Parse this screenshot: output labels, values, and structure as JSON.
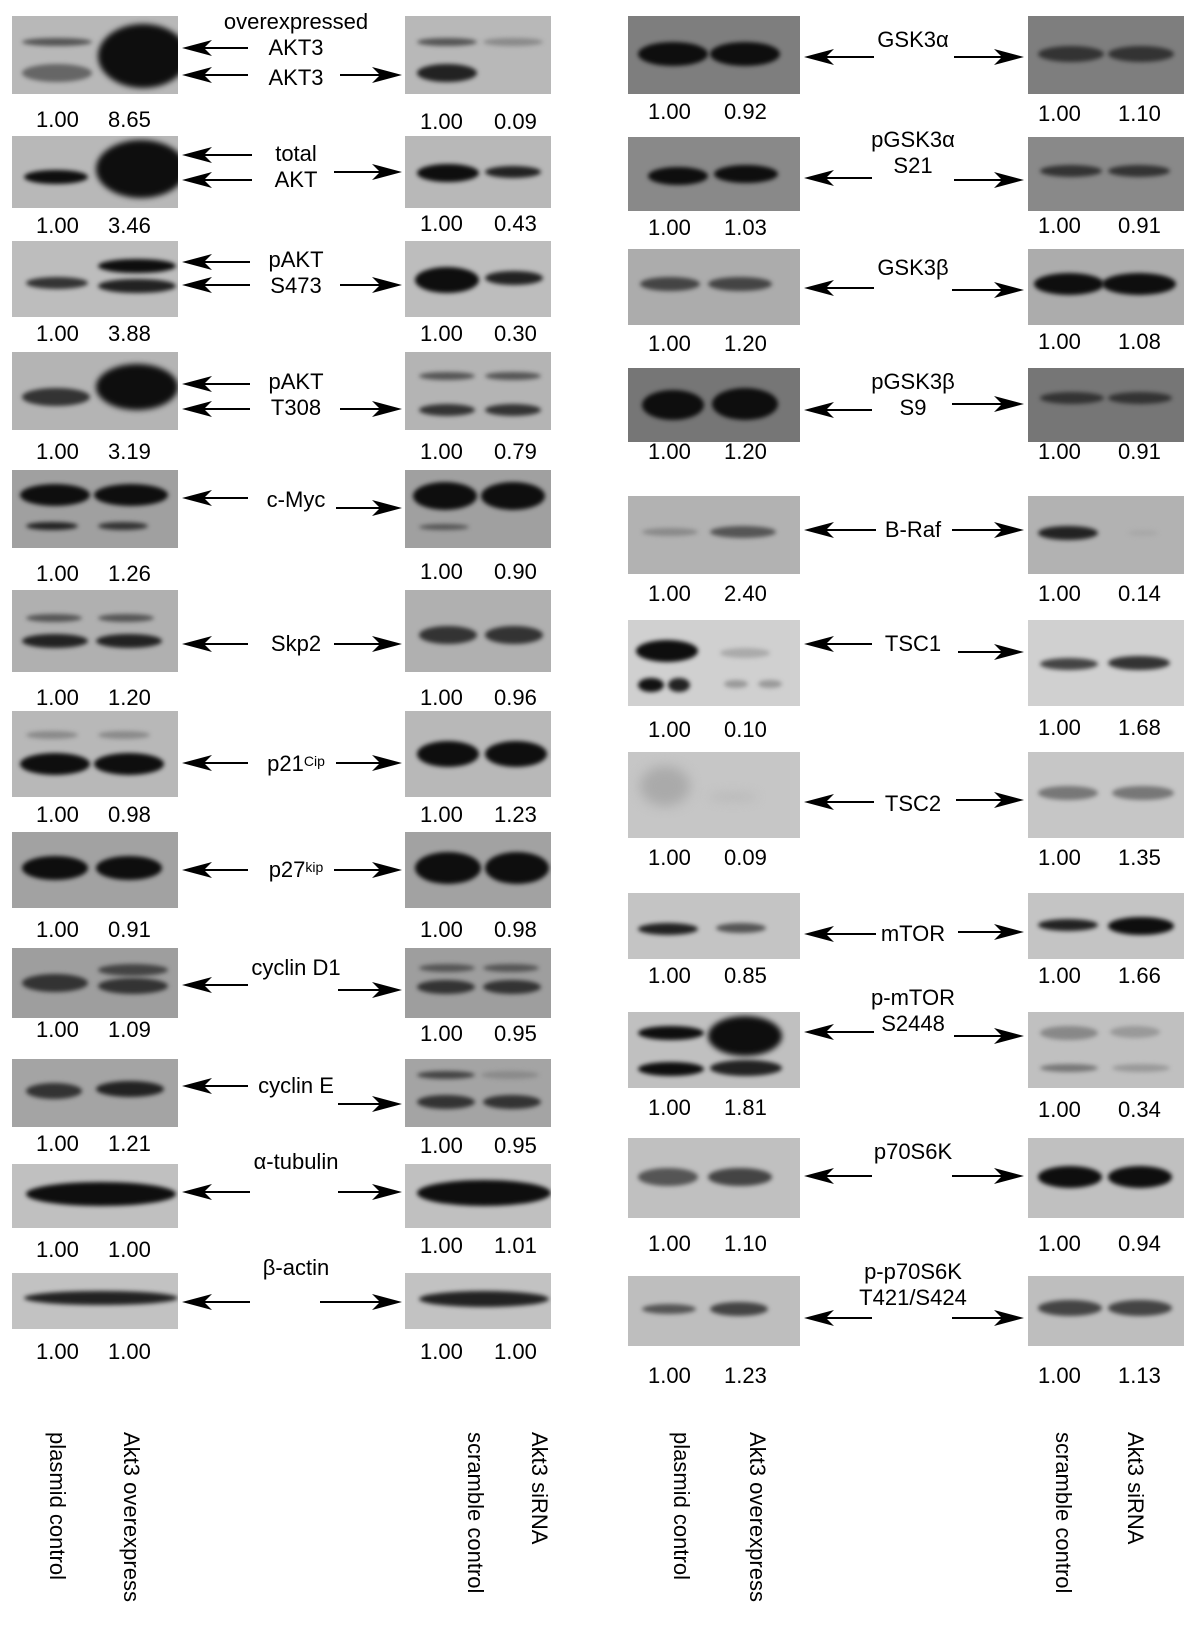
{
  "lane_labels": {
    "left": [
      "plasmid control",
      "Akt3 overexpress",
      "scramble control",
      "Akt3 siRNA"
    ],
    "right": [
      "plasmid control",
      "Akt3 overexpress",
      "scramble control",
      "Akt3 siRNA"
    ]
  },
  "left_panels": [
    {
      "label": "overexpressed\nAKT3",
      "label2": "AKT3",
      "oe_values": [
        "1.00",
        "8.65"
      ],
      "si_values": [
        "1.00",
        "0.09"
      ]
    },
    {
      "label": "total\nAKT",
      "oe_values": [
        "1.00",
        "3.46"
      ],
      "si_values": [
        "1.00",
        "0.43"
      ]
    },
    {
      "label": "pAKT\nS473",
      "oe_values": [
        "1.00",
        "3.88"
      ],
      "si_values": [
        "1.00",
        "0.30"
      ]
    },
    {
      "label": "pAKT\nT308",
      "oe_values": [
        "1.00",
        "3.19"
      ],
      "si_values": [
        "1.00",
        "0.79"
      ]
    },
    {
      "label": "c-Myc",
      "oe_values": [
        "1.00",
        "1.26"
      ],
      "si_values": [
        "1.00",
        "0.90"
      ]
    },
    {
      "label": "Skp2",
      "oe_values": [
        "1.00",
        "1.20"
      ],
      "si_values": [
        "1.00",
        "0.96"
      ]
    },
    {
      "label": "p21",
      "label_sup": "Cip",
      "oe_values": [
        "1.00",
        "0.98"
      ],
      "si_values": [
        "1.00",
        "1.23"
      ]
    },
    {
      "label": "p27",
      "label_sup": "kip",
      "oe_values": [
        "1.00",
        "0.91"
      ],
      "si_values": [
        "1.00",
        "0.98"
      ]
    },
    {
      "label": "cyclin D1",
      "oe_values": [
        "1.00",
        "1.09"
      ],
      "si_values": [
        "1.00",
        "0.95"
      ]
    },
    {
      "label": "cyclin E",
      "oe_values": [
        "1.00",
        "1.21"
      ],
      "si_values": [
        "1.00",
        "0.95"
      ]
    },
    {
      "label": "α-tubulin",
      "oe_values": [
        "1.00",
        "1.00"
      ],
      "si_values": [
        "1.00",
        "1.01"
      ]
    },
    {
      "label": "β-actin",
      "oe_values": [
        "1.00",
        "1.00"
      ],
      "si_values": [
        "1.00",
        "1.00"
      ]
    }
  ],
  "right_panels": [
    {
      "label": "GSK3α",
      "oe_values": [
        "1.00",
        "0.92"
      ],
      "si_values": [
        "1.00",
        "1.10"
      ]
    },
    {
      "label": "pGSK3α\nS21",
      "oe_values": [
        "1.00",
        "1.03"
      ],
      "si_values": [
        "1.00",
        "0.91"
      ]
    },
    {
      "label": "GSK3β",
      "oe_values": [
        "1.00",
        "1.20"
      ],
      "si_values": [
        "1.00",
        "1.08"
      ]
    },
    {
      "label": "pGSK3β\nS9",
      "oe_values": [
        "1.00",
        "1.20"
      ],
      "si_values": [
        "1.00",
        "0.91"
      ]
    },
    {
      "label": "B-Raf",
      "oe_values": [
        "1.00",
        "2.40"
      ],
      "si_values": [
        "1.00",
        "0.14"
      ]
    },
    {
      "label": "TSC1",
      "oe_values": [
        "1.00",
        "0.10"
      ],
      "si_values": [
        "1.00",
        "1.68"
      ]
    },
    {
      "label": "TSC2",
      "oe_values": [
        "1.00",
        "0.09"
      ],
      "si_values": [
        "1.00",
        "1.35"
      ]
    },
    {
      "label": "mTOR",
      "oe_values": [
        "1.00",
        "0.85"
      ],
      "si_values": [
        "1.00",
        "1.66"
      ]
    },
    {
      "label": "p-mTOR\nS2448",
      "oe_values": [
        "1.00",
        "1.81"
      ],
      "si_values": [
        "1.00",
        "0.34"
      ]
    },
    {
      "label": "p70S6K",
      "oe_values": [
        "1.00",
        "1.10"
      ],
      "si_values": [
        "1.00",
        "0.94"
      ]
    },
    {
      "label": "p-p70S6K\nT421/S424",
      "oe_values": [
        "1.00",
        "1.23"
      ],
      "si_values": [
        "1.00",
        "1.13"
      ]
    }
  ]
}
